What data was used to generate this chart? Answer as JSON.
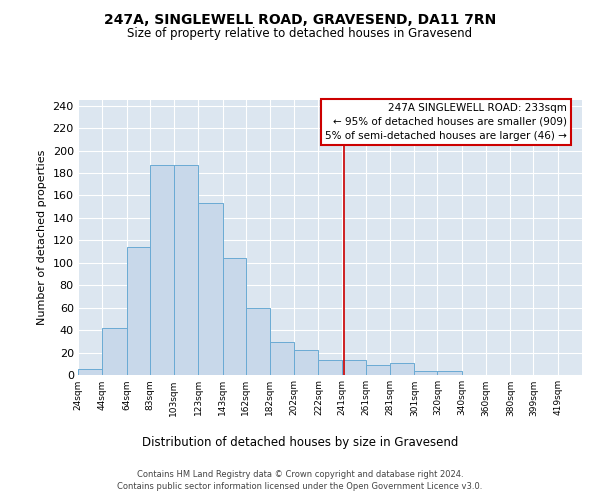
{
  "title": "247A, SINGLEWELL ROAD, GRAVESEND, DA11 7RN",
  "subtitle": "Size of property relative to detached houses in Gravesend",
  "xlabel": "Distribution of detached houses by size in Gravesend",
  "ylabel": "Number of detached properties",
  "bar_labels": [
    "24sqm",
    "44sqm",
    "64sqm",
    "83sqm",
    "103sqm",
    "123sqm",
    "143sqm",
    "162sqm",
    "182sqm",
    "202sqm",
    "222sqm",
    "241sqm",
    "261sqm",
    "281sqm",
    "301sqm",
    "320sqm",
    "340sqm",
    "360sqm",
    "380sqm",
    "399sqm",
    "419sqm"
  ],
  "bin_edges": [
    14,
    34,
    54,
    73,
    93,
    113,
    133,
    152,
    172,
    192,
    212,
    231,
    251,
    271,
    291,
    310,
    330,
    350,
    370,
    389,
    409,
    429
  ],
  "counts": [
    5,
    42,
    114,
    187,
    187,
    153,
    104,
    60,
    29,
    22,
    13,
    13,
    9,
    11,
    4,
    4,
    0,
    0,
    0,
    0,
    0
  ],
  "bar_facecolor": "#c8d8ea",
  "bar_edgecolor": "#6aaad4",
  "vline_x": 233,
  "vline_color": "#cc0000",
  "annotation_title": "247A SINGLEWELL ROAD: 233sqm",
  "annotation_line1": "← 95% of detached houses are smaller (909)",
  "annotation_line2": "5% of semi-detached houses are larger (46) →",
  "annotation_box_edgecolor": "#cc0000",
  "ylim": [
    0,
    245
  ],
  "yticks": [
    0,
    20,
    40,
    60,
    80,
    100,
    120,
    140,
    160,
    180,
    200,
    220,
    240
  ],
  "background_color": "#dce6f0",
  "grid_color": "#ffffff",
  "footer_line1": "Contains HM Land Registry data © Crown copyright and database right 2024.",
  "footer_line2": "Contains public sector information licensed under the Open Government Licence v3.0."
}
